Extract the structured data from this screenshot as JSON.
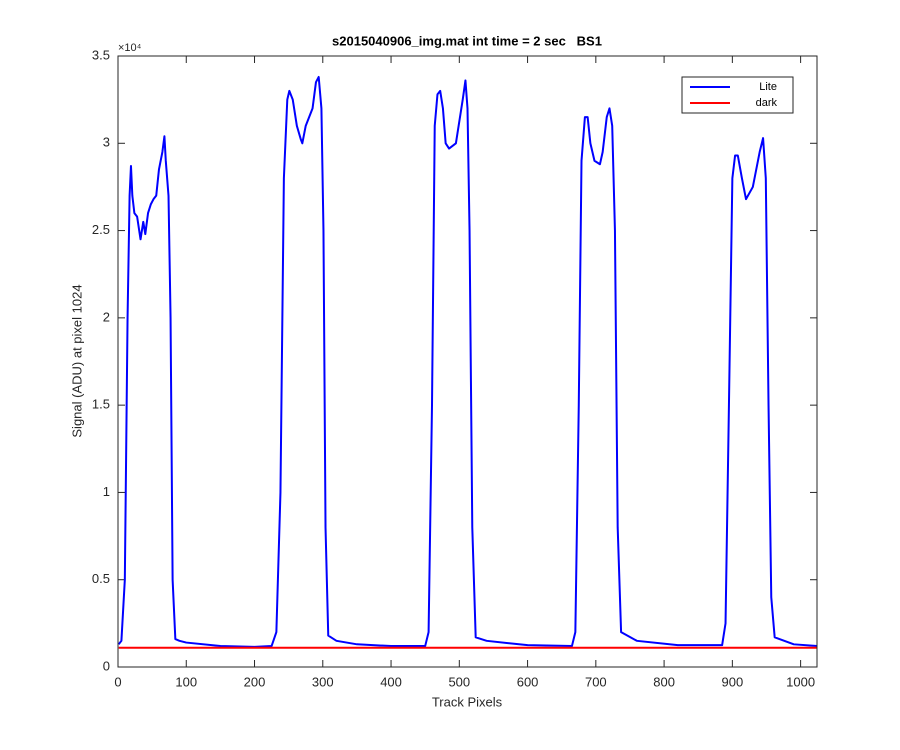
{
  "chart_data": {
    "type": "line",
    "title": "s2015040906_img.mat int time = 2 sec   BS1",
    "x_label": "Track Pixels",
    "y_label": "Signal (ADU) at pixel 1024",
    "y_exponent_label": "×10⁴",
    "xlim": [
      0,
      1024
    ],
    "ylim": [
      0,
      35000
    ],
    "xticks": [
      0,
      100,
      200,
      300,
      400,
      500,
      600,
      700,
      800,
      900,
      1000
    ],
    "yticks": [
      0,
      {
        "value": 5000,
        "label": "0.5"
      },
      {
        "value": 10000,
        "label": "1"
      },
      {
        "value": 15000,
        "label": "1.5"
      },
      {
        "value": 20000,
        "label": "2"
      },
      {
        "value": 25000,
        "label": "2.5"
      },
      {
        "value": 30000,
        "label": "3"
      },
      {
        "value": 35000,
        "label": "3.5"
      }
    ],
    "grid": false,
    "legend": "northeast",
    "series": [
      {
        "name": "Lite",
        "color": "#0000ff",
        "x": [
          1,
          5,
          10,
          14,
          17,
          19,
          21,
          24,
          28,
          33,
          37,
          40,
          44,
          48,
          52,
          56,
          60,
          65,
          68,
          70,
          74,
          77,
          80,
          84,
          90,
          100,
          150,
          200,
          225,
          232,
          238,
          243,
          248,
          251,
          256,
          262,
          268,
          270,
          275,
          285,
          290,
          294,
          298,
          301,
          304,
          308,
          320,
          350,
          400,
          450,
          455,
          460,
          464,
          468,
          472,
          476,
          480,
          485,
          495,
          505,
          509,
          512,
          515,
          519,
          524,
          540,
          600,
          665,
          670,
          675,
          679,
          684,
          688,
          692,
          698,
          706,
          710,
          716,
          720,
          724,
          728,
          732,
          737,
          760,
          820,
          885,
          890,
          895,
          900,
          904,
          908,
          914,
          920,
          930,
          940,
          945,
          949,
          953,
          957,
          962,
          990,
          1024
        ],
        "values": [
          1300,
          1500,
          5000,
          20000,
          27000,
          28700,
          27000,
          26000,
          25800,
          24500,
          25500,
          24800,
          26000,
          26500,
          26800,
          27000,
          28500,
          29500,
          30400,
          29000,
          27000,
          20000,
          5000,
          1600,
          1500,
          1400,
          1200,
          1150,
          1200,
          2000,
          10000,
          28000,
          32500,
          33000,
          32500,
          31000,
          30200,
          30000,
          31000,
          32000,
          33500,
          33800,
          32000,
          25000,
          8000,
          1800,
          1500,
          1300,
          1200,
          1200,
          2000,
          15000,
          31000,
          32800,
          33000,
          32000,
          30000,
          29700,
          30000,
          32500,
          33600,
          32000,
          25000,
          8000,
          1700,
          1500,
          1250,
          1200,
          2000,
          15000,
          29000,
          31500,
          31500,
          30000,
          29000,
          28800,
          29500,
          31500,
          32000,
          31000,
          25000,
          8000,
          2000,
          1500,
          1250,
          1250,
          2500,
          15000,
          28000,
          29300,
          29300,
          28000,
          26800,
          27500,
          29500,
          30300,
          28000,
          15000,
          4000,
          1700,
          1300,
          1200
        ]
      },
      {
        "name": "dark",
        "color": "#ff0000",
        "x": [
          1,
          1024
        ],
        "values": [
          1100,
          1100
        ]
      }
    ]
  }
}
